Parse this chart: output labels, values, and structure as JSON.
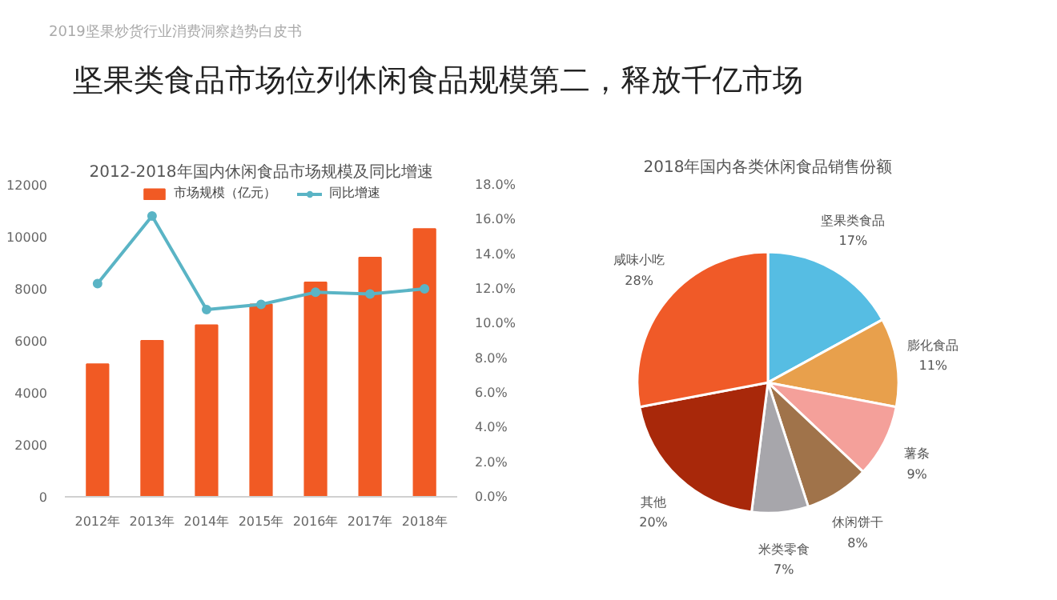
{
  "chart_data": [
    {
      "type": "bar",
      "title": "2012-2018年国内休闲食品市场规模及同比增速",
      "annotations": [
        "2019坚果炒货行业消费洞察趋势白皮书",
        "坚果类食品市场位列休闲食品规模第二，释放千亿市场"
      ],
      "categories": [
        "2012年",
        "2013年",
        "2014年",
        "2015年",
        "2016年",
        "2017年",
        "2018年"
      ],
      "series": [
        {
          "name": "市场规模（亿元）",
          "color": "#f15a24",
          "values": [
            5100,
            6000,
            6600,
            7400,
            8250,
            9200,
            10300
          ]
        },
        {
          "name": "同比增速",
          "type": "line",
          "axis": "y2",
          "color": "#5ab4c5",
          "marker": "circle",
          "values": [
            12.3,
            16.2,
            10.8,
            11.1,
            11.8,
            11.7,
            12.0
          ]
        }
      ],
      "ylim": [
        0,
        12000
      ],
      "yticks": [
        0,
        2000,
        4000,
        6000,
        8000,
        10000,
        12000
      ],
      "y2lim": [
        0,
        18
      ],
      "y2ticks": [
        {
          "value": 0,
          "label": "0.0%"
        },
        {
          "value": 2,
          "label": "2.0%"
        },
        {
          "value": 4,
          "label": "4.0%"
        },
        {
          "value": 6,
          "label": "6.0%"
        },
        {
          "value": 8,
          "label": "8.0%"
        },
        {
          "value": 10,
          "label": "10.0%"
        },
        {
          "value": 12,
          "label": "12.0%"
        },
        {
          "value": 14,
          "label": "14.0%"
        },
        {
          "value": 16,
          "label": "16.0%"
        },
        {
          "value": 18,
          "label": "18.0%"
        }
      ],
      "legend": "top",
      "grid": false
    },
    {
      "type": "pie",
      "title": "2018年国内各类休闲食品销售份额",
      "categories": [
        "坚果类食品",
        "膨化食品",
        "薯条",
        "休闲饼干",
        "米类零食",
        "其他",
        "咸味小吃"
      ],
      "values": [
        17,
        11,
        9,
        8,
        7,
        20,
        28
      ],
      "colors": [
        "#56bde3",
        "#e8a04c",
        "#f4a09a",
        "#a0734a",
        "#a7a6ab",
        "#a8280a",
        "#f05a28"
      ],
      "value_labels": [
        "17%",
        "11%",
        "9%",
        "8%",
        "7%",
        "20%",
        "28%"
      ]
    }
  ]
}
